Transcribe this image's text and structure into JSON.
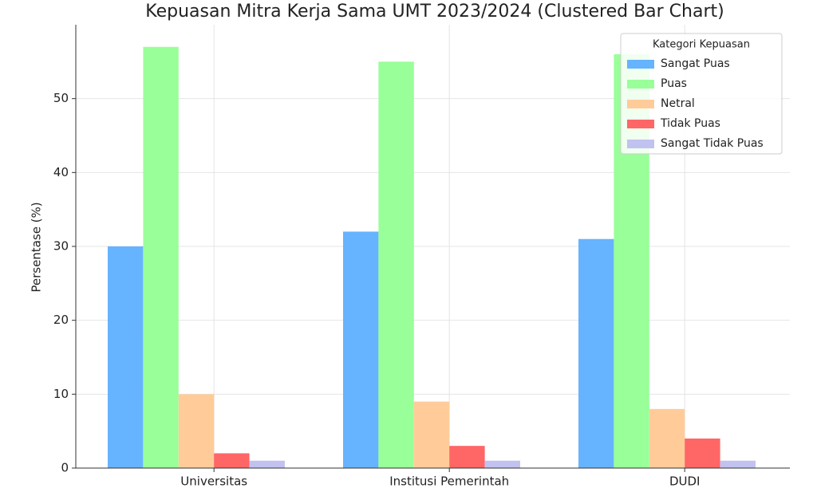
{
  "chart_data": {
    "type": "bar",
    "title": "Kepuasan Mitra Kerja Sama UMT 2023/2024 (Clustered Bar Chart)",
    "y_label": "Persentase (%)",
    "categories": [
      "Universitas",
      "Institusi Pemerintah",
      "DUDI"
    ],
    "legend_title": "Kategori Kepuasan",
    "legend_position": "upper right",
    "grid": true,
    "series": [
      {
        "name": "Sangat Puas",
        "color": "#66b3ff",
        "values": [
          30,
          32,
          31
        ]
      },
      {
        "name": "Puas",
        "color": "#99ff99",
        "values": [
          57,
          55,
          56
        ]
      },
      {
        "name": "Netral",
        "color": "#ffcc99",
        "values": [
          10,
          9,
          8
        ]
      },
      {
        "name": "Tidak Puas",
        "color": "#ff6666",
        "values": [
          2,
          3,
          4
        ]
      },
      {
        "name": "Sangat Tidak Puas",
        "color": "#c2c2f0",
        "values": [
          1,
          1,
          1
        ]
      }
    ],
    "ylim": [
      0,
      60
    ],
    "yticks": [
      0,
      10,
      20,
      30,
      40,
      50
    ]
  }
}
